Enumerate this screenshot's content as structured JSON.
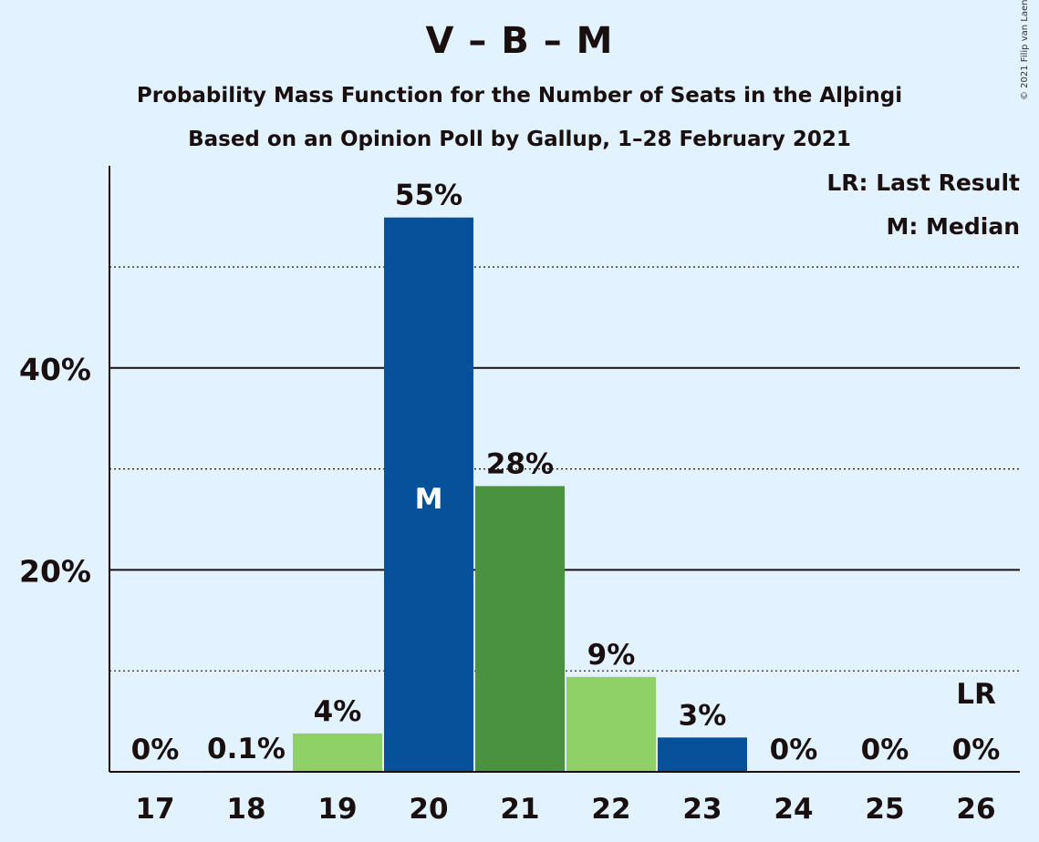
{
  "title": "V – B – M",
  "subtitle": "Probability Mass Function for the Number of Seats in the Alþingi",
  "subtitle2": "Based on an Opinion Poll by Gallup, 1–28 February 2021",
  "copyright": "© 2021 Filip van Laenen",
  "legend": {
    "lr": "LR: Last Result",
    "median": "M: Median"
  },
  "colors": {
    "background": "#e3f2ff",
    "dark_blue": "#07519a",
    "dark_green": "#4a9140",
    "light_green": "#8fd067"
  },
  "chart_data": {
    "type": "bar",
    "categories": [
      "17",
      "18",
      "19",
      "20",
      "21",
      "22",
      "23",
      "24",
      "25",
      "26"
    ],
    "values": [
      0,
      0.1,
      3.8,
      54.9,
      28.3,
      9.4,
      3.4,
      0,
      0,
      0
    ],
    "labels": [
      "0%",
      "0.1%",
      "4%",
      "55%",
      "28%",
      "9%",
      "3%",
      "0%",
      "0%",
      "0%"
    ],
    "bar_colors": [
      "#07519a",
      "#07519a",
      "#8fd067",
      "#07519a",
      "#4a9140",
      "#8fd067",
      "#07519a",
      "#07519a",
      "#07519a",
      "#07519a"
    ],
    "y_ticks": [
      {
        "value": 20,
        "label": "20%"
      },
      {
        "value": 40,
        "label": "40%"
      }
    ],
    "minor_gridlines": [
      10,
      30,
      50
    ],
    "ylim": [
      0,
      60
    ],
    "median_seats": "20",
    "median_marker": "M",
    "last_result_seats": "26",
    "last_result_marker": "LR",
    "legend_position": "top-right"
  }
}
